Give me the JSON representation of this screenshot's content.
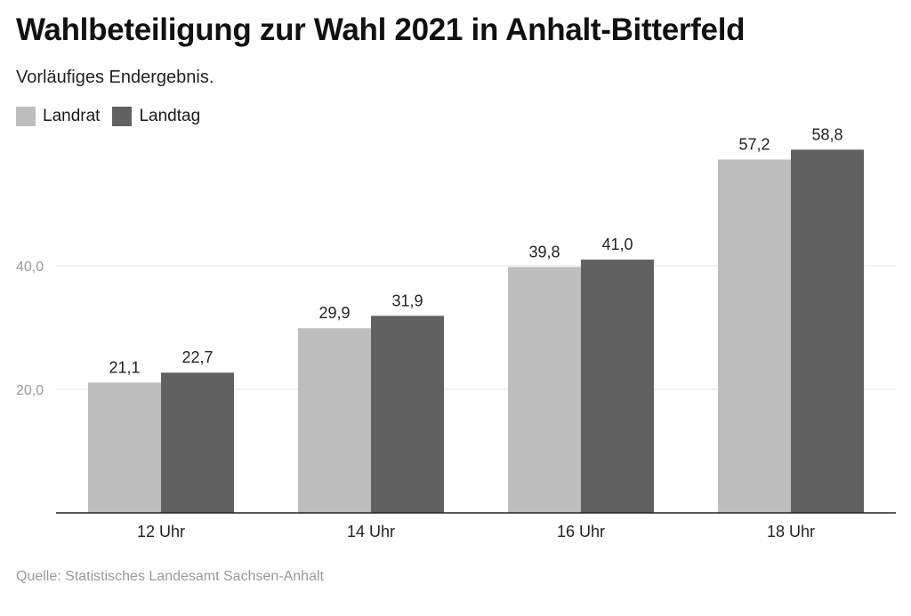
{
  "title": "Wahlbeteiligung zur Wahl 2021 in Anhalt-Bitterfeld",
  "subtitle": "Vorläufiges Endergebnis.",
  "source": "Quelle: Statistisches Landesamt Sachsen-Anhalt",
  "colors": {
    "landrat": "#bdbdbd",
    "landtag": "#616161",
    "grid": "#e3e3e3",
    "axis": "#222222"
  },
  "chart_data": {
    "type": "bar",
    "title": "Wahlbeteiligung zur Wahl 2021 in Anhalt-Bitterfeld",
    "subtitle": "Vorläufiges Endergebnis.",
    "categories": [
      "12 Uhr",
      "14 Uhr",
      "16 Uhr",
      "18 Uhr"
    ],
    "series": [
      {
        "name": "Landrat",
        "values": [
          21.1,
          29.9,
          39.8,
          57.2
        ],
        "labels": [
          "21,1",
          "29,9",
          "39,8",
          "57,2"
        ]
      },
      {
        "name": "Landtag",
        "values": [
          22.7,
          31.9,
          41.0,
          58.8
        ],
        "labels": [
          "22,7",
          "31,9",
          "41,0",
          "58,8"
        ]
      }
    ],
    "yticks": [
      20,
      40
    ],
    "ytick_labels": [
      "20,0",
      "40,0"
    ],
    "ylim": [
      0,
      60
    ],
    "grid": true,
    "legend": "top-left",
    "xlabel": "",
    "ylabel": ""
  }
}
